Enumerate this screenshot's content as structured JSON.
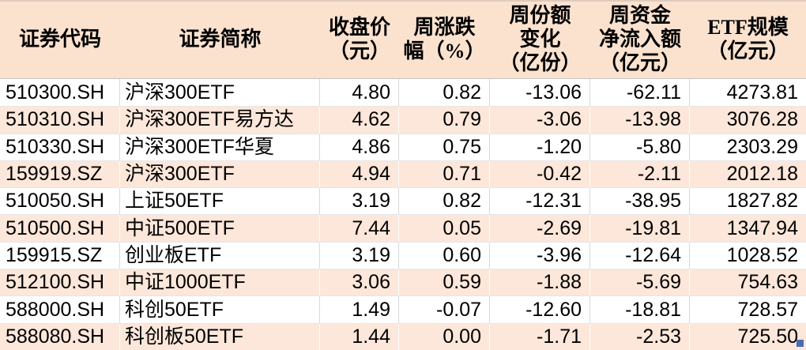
{
  "colors": {
    "header_bg": "#fbe2cf",
    "alt_row_bg": "#fce7da",
    "grid_line": "#d9d9d9",
    "fill_handle": "#4a6cb5",
    "text": "#000000"
  },
  "chart_data": {
    "type": "table",
    "columns": [
      "证券代码",
      "证券简称",
      "收盘价\n（元）",
      "周涨跌\n幅（%）",
      "周份额\n变化\n（亿份）",
      "周资金\n净流入额\n（亿元）",
      "ETF规模\n（亿元）"
    ],
    "column_keys": [
      "code",
      "name",
      "close_price_yuan",
      "weekly_change_pct",
      "weekly_share_change_100m_units",
      "weekly_net_inflow_100m_yuan",
      "etf_scale_100m_yuan"
    ],
    "rows": [
      [
        "510300.SH",
        "沪深300ETF",
        "4.80",
        "0.82",
        "-13.06",
        "-62.11",
        "4273.81"
      ],
      [
        "510310.SH",
        "沪深300ETF易方达",
        "4.62",
        "0.79",
        "-3.06",
        "-13.98",
        "3076.28"
      ],
      [
        "510330.SH",
        "沪深300ETF华夏",
        "4.86",
        "0.75",
        "-1.20",
        "-5.80",
        "2303.29"
      ],
      [
        "159919.SZ",
        "沪深300ETF",
        "4.94",
        "0.71",
        "-0.42",
        "-2.11",
        "2012.18"
      ],
      [
        "510050.SH",
        "上证50ETF",
        "3.19",
        "0.82",
        "-12.31",
        "-38.95",
        "1827.82"
      ],
      [
        "510500.SH",
        "中证500ETF",
        "7.44",
        "0.05",
        "-2.69",
        "-19.81",
        "1347.94"
      ],
      [
        "159915.SZ",
        "创业板ETF",
        "3.19",
        "0.60",
        "-3.96",
        "-12.64",
        "1028.52"
      ],
      [
        "512100.SH",
        "中证1000ETF",
        "3.06",
        "0.59",
        "-1.88",
        "-5.69",
        "754.63"
      ],
      [
        "588000.SH",
        "科创50ETF",
        "1.49",
        "-0.07",
        "-12.60",
        "-18.81",
        "728.57"
      ],
      [
        "588080.SH",
        "科创板50ETF",
        "1.44",
        "0.00",
        "-1.71",
        "-2.53",
        "725.50"
      ]
    ]
  }
}
